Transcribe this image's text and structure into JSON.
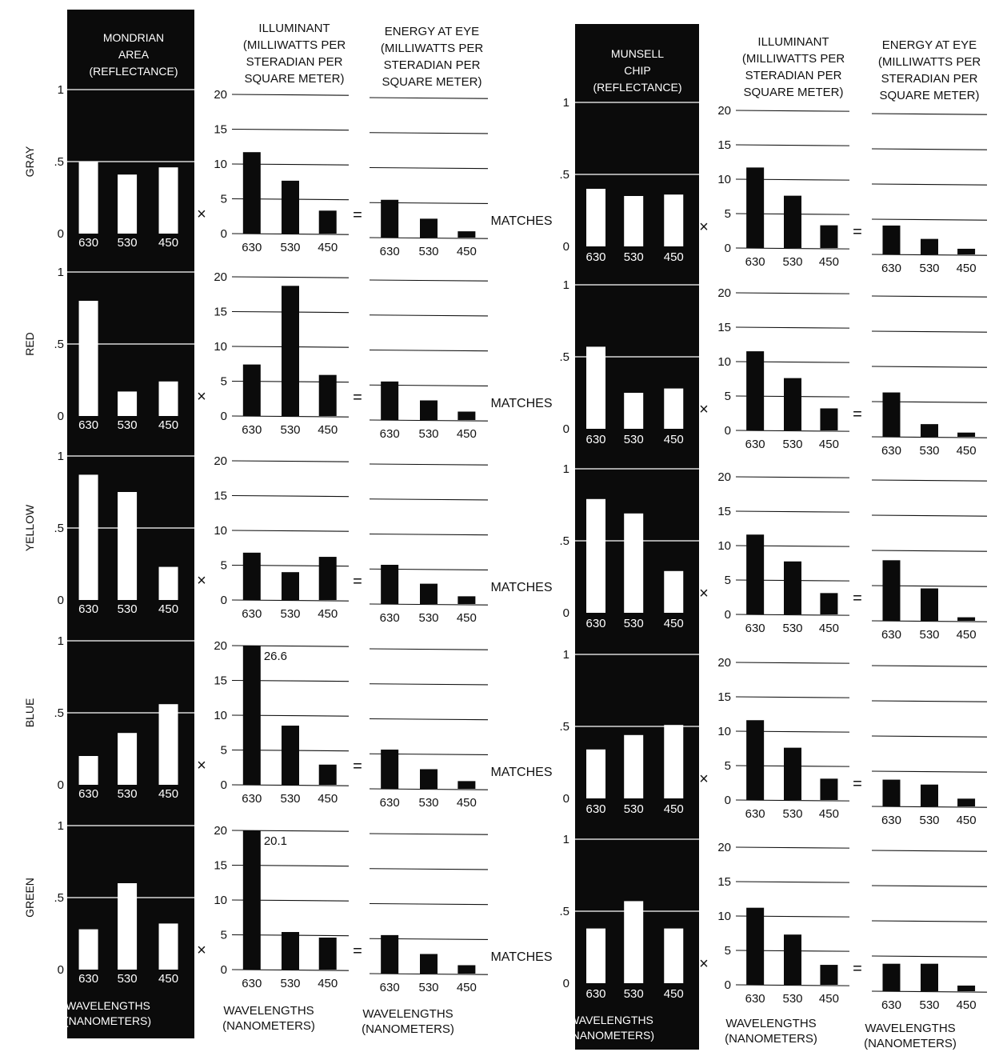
{
  "headers": {
    "left": {
      "reflectance": [
        "MONDRIAN",
        "AREA",
        "(REFLECTANCE)"
      ],
      "illuminant": [
        "ILLUMINANT",
        "(MILLIWATTS PER",
        "STERADIAN PER",
        "SQUARE METER)"
      ],
      "energy": [
        "ENERGY AT EYE",
        "(MILLIWATTS PER",
        "STERADIAN PER",
        "SQUARE METER)"
      ]
    },
    "right": {
      "reflectance": [
        "MUNSELL",
        "CHIP",
        "(REFLECTANCE)"
      ],
      "illuminant": [
        "ILLUMINANT",
        "(MILLIWATTS PER",
        "STERADIAN PER",
        "SQUARE METER)"
      ],
      "energy": [
        "ENERGY AT EYE",
        "(MILLIWATTS PER",
        "STERADIAN PER",
        "SQUARE METER)"
      ]
    }
  },
  "footer": {
    "wavelengths": [
      "WAVELENGTHS",
      "(NANOMETERS)"
    ]
  },
  "symbols": {
    "times": "×",
    "equals": "=",
    "matches": "MATCHES"
  },
  "chart_data": {
    "type": "bar",
    "categories": [
      "630",
      "530",
      "450"
    ],
    "reflectance_ticks": [
      "0",
      ".5",
      "1"
    ],
    "reflectance_ylim": [
      0,
      1
    ],
    "illuminant_ticks": [
      "0",
      "5",
      "10",
      "15",
      "20"
    ],
    "illuminant_ylim": [
      0,
      20
    ],
    "rows": [
      {
        "label": "GRAY",
        "mondrian": {
          "reflectance": [
            0.5,
            0.41,
            0.46
          ],
          "illuminant": [
            11.7,
            7.6,
            3.3
          ],
          "energy": [
            5.4,
            2.7,
            0.9
          ]
        },
        "munsell": {
          "reflectance": [
            0.4,
            0.35,
            0.36
          ],
          "illuminant": [
            11.7,
            7.6,
            3.3
          ],
          "energy": [
            4.1,
            2.2,
            0.8
          ]
        }
      },
      {
        "label": "RED",
        "mondrian": {
          "reflectance": [
            0.8,
            0.17,
            0.24
          ],
          "illuminant": [
            7.4,
            18.7,
            5.9
          ],
          "energy": [
            5.5,
            2.8,
            1.2
          ]
        },
        "munsell": {
          "reflectance": [
            0.57,
            0.25,
            0.28
          ],
          "illuminant": [
            11.5,
            7.6,
            3.2
          ],
          "energy": [
            6.3,
            1.8,
            0.6
          ]
        }
      },
      {
        "label": "YELLOW",
        "mondrian": {
          "reflectance": [
            0.87,
            0.75,
            0.23
          ],
          "illuminant": [
            6.8,
            4.0,
            6.2
          ],
          "energy": [
            5.6,
            2.9,
            1.1
          ]
        },
        "munsell": {
          "reflectance": [
            0.79,
            0.69,
            0.29
          ],
          "illuminant": [
            11.6,
            7.7,
            3.1
          ],
          "energy": [
            8.6,
            4.6,
            0.5
          ]
        }
      },
      {
        "label": "BLUE",
        "mondrian": {
          "reflectance": [
            0.2,
            0.36,
            0.56
          ],
          "illuminant": [
            20,
            8.5,
            2.9
          ],
          "illuminant_labels": [
            "26.6",
            "",
            ""
          ],
          "energy": [
            5.6,
            2.8,
            1.1
          ]
        },
        "munsell": {
          "reflectance": [
            0.34,
            0.44,
            0.51
          ],
          "illuminant": [
            11.6,
            7.6,
            3.1
          ],
          "energy": [
            3.8,
            3.1,
            1.1
          ]
        }
      },
      {
        "label": "GREEN",
        "mondrian": {
          "reflectance": [
            0.28,
            0.6,
            0.32
          ],
          "illuminant": [
            20,
            5.4,
            4.6
          ],
          "illuminant_labels": [
            "20.1",
            "",
            ""
          ],
          "energy": [
            5.5,
            2.8,
            1.2
          ]
        },
        "munsell": {
          "reflectance": [
            0.38,
            0.57,
            0.38
          ],
          "illuminant": [
            11.2,
            7.3,
            2.9
          ],
          "energy": [
            3.9,
            3.9,
            0.8
          ]
        }
      }
    ]
  }
}
